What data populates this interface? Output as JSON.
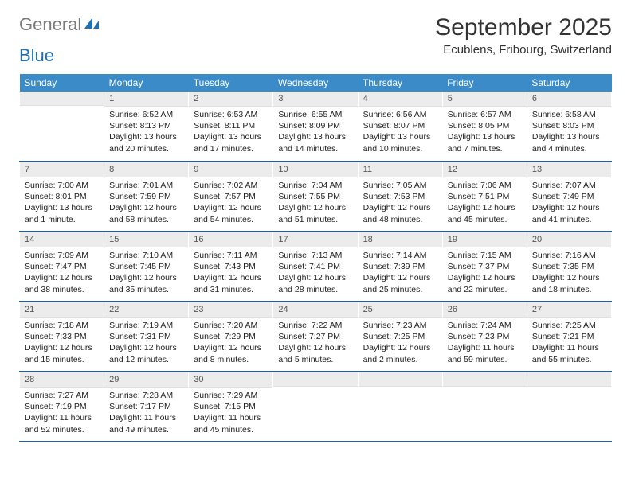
{
  "logo": {
    "gray": "General",
    "blue": "Blue"
  },
  "title": "September 2025",
  "location": "Ecublens, Fribourg, Switzerland",
  "colors": {
    "header_bg": "#3b8bc9",
    "header_text": "#ffffff",
    "daynum_bg": "#ececec",
    "row_border": "#2f5b87",
    "logo_gray": "#7a7a7a",
    "logo_blue": "#1f6fb2"
  },
  "weekdays": [
    "Sunday",
    "Monday",
    "Tuesday",
    "Wednesday",
    "Thursday",
    "Friday",
    "Saturday"
  ],
  "weeks": [
    [
      {
        "day": "",
        "sunrise": "",
        "sunset": "",
        "daylight": ""
      },
      {
        "day": "1",
        "sunrise": "Sunrise: 6:52 AM",
        "sunset": "Sunset: 8:13 PM",
        "daylight": "Daylight: 13 hours and 20 minutes."
      },
      {
        "day": "2",
        "sunrise": "Sunrise: 6:53 AM",
        "sunset": "Sunset: 8:11 PM",
        "daylight": "Daylight: 13 hours and 17 minutes."
      },
      {
        "day": "3",
        "sunrise": "Sunrise: 6:55 AM",
        "sunset": "Sunset: 8:09 PM",
        "daylight": "Daylight: 13 hours and 14 minutes."
      },
      {
        "day": "4",
        "sunrise": "Sunrise: 6:56 AM",
        "sunset": "Sunset: 8:07 PM",
        "daylight": "Daylight: 13 hours and 10 minutes."
      },
      {
        "day": "5",
        "sunrise": "Sunrise: 6:57 AM",
        "sunset": "Sunset: 8:05 PM",
        "daylight": "Daylight: 13 hours and 7 minutes."
      },
      {
        "day": "6",
        "sunrise": "Sunrise: 6:58 AM",
        "sunset": "Sunset: 8:03 PM",
        "daylight": "Daylight: 13 hours and 4 minutes."
      }
    ],
    [
      {
        "day": "7",
        "sunrise": "Sunrise: 7:00 AM",
        "sunset": "Sunset: 8:01 PM",
        "daylight": "Daylight: 13 hours and 1 minute."
      },
      {
        "day": "8",
        "sunrise": "Sunrise: 7:01 AM",
        "sunset": "Sunset: 7:59 PM",
        "daylight": "Daylight: 12 hours and 58 minutes."
      },
      {
        "day": "9",
        "sunrise": "Sunrise: 7:02 AM",
        "sunset": "Sunset: 7:57 PM",
        "daylight": "Daylight: 12 hours and 54 minutes."
      },
      {
        "day": "10",
        "sunrise": "Sunrise: 7:04 AM",
        "sunset": "Sunset: 7:55 PM",
        "daylight": "Daylight: 12 hours and 51 minutes."
      },
      {
        "day": "11",
        "sunrise": "Sunrise: 7:05 AM",
        "sunset": "Sunset: 7:53 PM",
        "daylight": "Daylight: 12 hours and 48 minutes."
      },
      {
        "day": "12",
        "sunrise": "Sunrise: 7:06 AM",
        "sunset": "Sunset: 7:51 PM",
        "daylight": "Daylight: 12 hours and 45 minutes."
      },
      {
        "day": "13",
        "sunrise": "Sunrise: 7:07 AM",
        "sunset": "Sunset: 7:49 PM",
        "daylight": "Daylight: 12 hours and 41 minutes."
      }
    ],
    [
      {
        "day": "14",
        "sunrise": "Sunrise: 7:09 AM",
        "sunset": "Sunset: 7:47 PM",
        "daylight": "Daylight: 12 hours and 38 minutes."
      },
      {
        "day": "15",
        "sunrise": "Sunrise: 7:10 AM",
        "sunset": "Sunset: 7:45 PM",
        "daylight": "Daylight: 12 hours and 35 minutes."
      },
      {
        "day": "16",
        "sunrise": "Sunrise: 7:11 AM",
        "sunset": "Sunset: 7:43 PM",
        "daylight": "Daylight: 12 hours and 31 minutes."
      },
      {
        "day": "17",
        "sunrise": "Sunrise: 7:13 AM",
        "sunset": "Sunset: 7:41 PM",
        "daylight": "Daylight: 12 hours and 28 minutes."
      },
      {
        "day": "18",
        "sunrise": "Sunrise: 7:14 AM",
        "sunset": "Sunset: 7:39 PM",
        "daylight": "Daylight: 12 hours and 25 minutes."
      },
      {
        "day": "19",
        "sunrise": "Sunrise: 7:15 AM",
        "sunset": "Sunset: 7:37 PM",
        "daylight": "Daylight: 12 hours and 22 minutes."
      },
      {
        "day": "20",
        "sunrise": "Sunrise: 7:16 AM",
        "sunset": "Sunset: 7:35 PM",
        "daylight": "Daylight: 12 hours and 18 minutes."
      }
    ],
    [
      {
        "day": "21",
        "sunrise": "Sunrise: 7:18 AM",
        "sunset": "Sunset: 7:33 PM",
        "daylight": "Daylight: 12 hours and 15 minutes."
      },
      {
        "day": "22",
        "sunrise": "Sunrise: 7:19 AM",
        "sunset": "Sunset: 7:31 PM",
        "daylight": "Daylight: 12 hours and 12 minutes."
      },
      {
        "day": "23",
        "sunrise": "Sunrise: 7:20 AM",
        "sunset": "Sunset: 7:29 PM",
        "daylight": "Daylight: 12 hours and 8 minutes."
      },
      {
        "day": "24",
        "sunrise": "Sunrise: 7:22 AM",
        "sunset": "Sunset: 7:27 PM",
        "daylight": "Daylight: 12 hours and 5 minutes."
      },
      {
        "day": "25",
        "sunrise": "Sunrise: 7:23 AM",
        "sunset": "Sunset: 7:25 PM",
        "daylight": "Daylight: 12 hours and 2 minutes."
      },
      {
        "day": "26",
        "sunrise": "Sunrise: 7:24 AM",
        "sunset": "Sunset: 7:23 PM",
        "daylight": "Daylight: 11 hours and 59 minutes."
      },
      {
        "day": "27",
        "sunrise": "Sunrise: 7:25 AM",
        "sunset": "Sunset: 7:21 PM",
        "daylight": "Daylight: 11 hours and 55 minutes."
      }
    ],
    [
      {
        "day": "28",
        "sunrise": "Sunrise: 7:27 AM",
        "sunset": "Sunset: 7:19 PM",
        "daylight": "Daylight: 11 hours and 52 minutes."
      },
      {
        "day": "29",
        "sunrise": "Sunrise: 7:28 AM",
        "sunset": "Sunset: 7:17 PM",
        "daylight": "Daylight: 11 hours and 49 minutes."
      },
      {
        "day": "30",
        "sunrise": "Sunrise: 7:29 AM",
        "sunset": "Sunset: 7:15 PM",
        "daylight": "Daylight: 11 hours and 45 minutes."
      },
      {
        "day": "",
        "sunrise": "",
        "sunset": "",
        "daylight": ""
      },
      {
        "day": "",
        "sunrise": "",
        "sunset": "",
        "daylight": ""
      },
      {
        "day": "",
        "sunrise": "",
        "sunset": "",
        "daylight": ""
      },
      {
        "day": "",
        "sunrise": "",
        "sunset": "",
        "daylight": ""
      }
    ]
  ]
}
